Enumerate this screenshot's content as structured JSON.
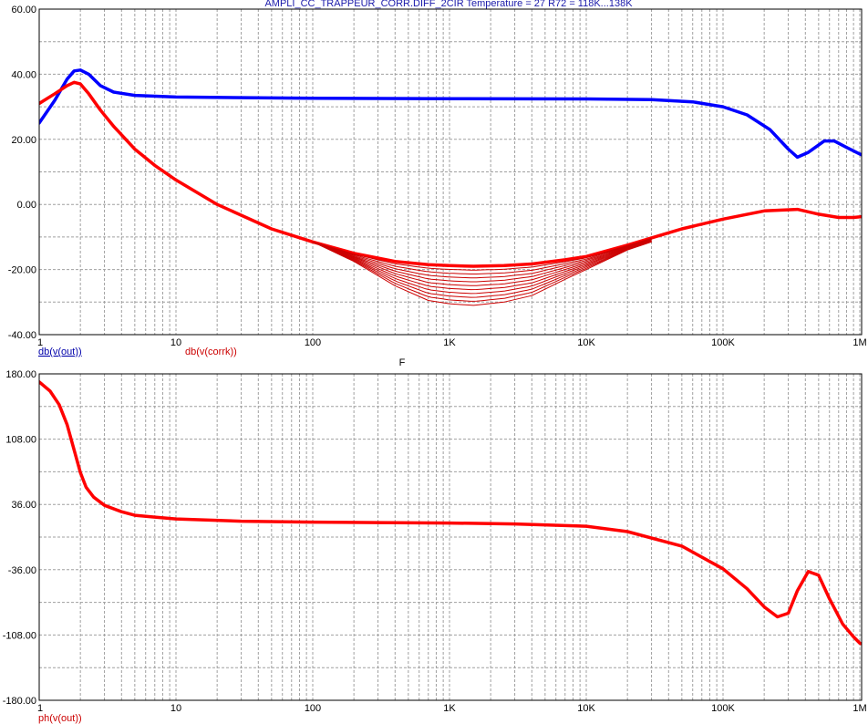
{
  "window": {
    "title": "AMPLI_CC_TRAPPEUR_CORR.DIFF_2CIR  Temperature = 27  R72 = 118K...138K"
  },
  "colors": {
    "blue": "#0000ff",
    "red": "#ff0000",
    "darkred": "#cc0000",
    "grid": "#9a9a9a"
  },
  "chart_data": [
    {
      "type": "line",
      "title": "AMPLI_CC_TRAPPEUR_CORR.DIFF_2CIR  Temperature = 27  R72 = 118K...138K",
      "xlabel": "F",
      "ylabel": "",
      "xscale": "log",
      "xlim": [
        1,
        1200000
      ],
      "ylim": [
        -40,
        60
      ],
      "grid": true,
      "x_tick_labels": [
        "1",
        "10",
        "100",
        "1K",
        "10K",
        "100K",
        "1M"
      ],
      "y_tick_labels": [
        "60.00",
        "40.00",
        "20.00",
        "0.00",
        "-20.00",
        "-40.00"
      ],
      "legend": [
        "db(v(out))",
        "db(v(corrk))"
      ],
      "series": [
        {
          "name": "db(v(out))",
          "color": "#0000ff",
          "x": [
            1,
            1.3,
            1.6,
            1.8,
            2.0,
            2.3,
            2.8,
            3.5,
            5,
            10,
            100,
            1000,
            10000,
            30000,
            60000,
            100000,
            150000,
            220000,
            300000,
            350000,
            420000,
            550000,
            650000,
            800000,
            1000000,
            1200000
          ],
          "y": [
            25,
            32,
            38.5,
            41,
            41.3,
            40,
            36.5,
            34.5,
            33.5,
            33,
            32.6,
            32.5,
            32.4,
            32.2,
            31.5,
            30,
            27.5,
            23,
            17,
            14.5,
            16,
            19.5,
            19.5,
            17.5,
            15.5,
            14
          ]
        },
        {
          "name": "db(v(corrk))",
          "color": "#ff0000",
          "x": [
            1,
            1.3,
            1.6,
            1.8,
            2.0,
            2.3,
            2.8,
            3.5,
            5,
            7,
            10,
            20,
            50,
            100,
            200,
            400,
            700,
            1000,
            1500,
            2500,
            4000,
            7000,
            10000,
            20000,
            50000,
            100000,
            200000,
            350000,
            500000,
            700000,
            900000,
            1200000
          ],
          "y": [
            31,
            34,
            36.5,
            37.5,
            37,
            34,
            29,
            24,
            17,
            12,
            7.5,
            0,
            -7.5,
            -11.5,
            -15,
            -17.5,
            -18.5,
            -18.8,
            -19,
            -18.8,
            -18.3,
            -17,
            -16,
            -12.5,
            -7.5,
            -4.5,
            -2,
            -1.5,
            -3,
            -4,
            -4,
            -3.5
          ]
        },
        {
          "name": "",
          "color": "#cc0000",
          "x": [
            100,
            200,
            400,
            700,
            1000,
            1500,
            2500,
            4000,
            7000,
            10000,
            20000,
            30000
          ],
          "y": [
            -11.5,
            -17.5,
            -25,
            -29.5,
            -30.5,
            -31,
            -30,
            -28,
            -23,
            -20,
            -14,
            -11.5
          ]
        }
      ]
    },
    {
      "type": "line",
      "title": "",
      "xlabel": "",
      "ylabel": "",
      "xscale": "log",
      "xlim": [
        1,
        1200000
      ],
      "ylim": [
        -180,
        180
      ],
      "grid": true,
      "x_tick_labels": [
        "1",
        "10",
        "100",
        "1K",
        "10K",
        "100K",
        "1M"
      ],
      "y_tick_labels": [
        "180.00",
        "108.00",
        "36.00",
        "-36.00",
        "-108.00",
        "-180.00"
      ],
      "legend": [
        "ph(v(out))"
      ],
      "series": [
        {
          "name": "ph(v(out))",
          "color": "#ff0000",
          "x": [
            1,
            1.2,
            1.4,
            1.6,
            1.8,
            2.0,
            2.2,
            2.5,
            3,
            4,
            5,
            7,
            10,
            30,
            100,
            300,
            1000,
            3000,
            10000,
            20000,
            50000,
            100000,
            150000,
            200000,
            250000,
            300000,
            350000,
            420000,
            500000,
            600000,
            750000,
            900000,
            1000000,
            1200000
          ],
          "y": [
            171,
            161,
            146,
            124,
            96,
            71,
            55,
            44,
            35,
            28,
            24,
            22,
            20,
            17.5,
            16.5,
            16,
            15.5,
            14.5,
            12,
            6,
            -10,
            -35,
            -57,
            -77,
            -88,
            -84,
            -59,
            -38,
            -42,
            -68,
            -96,
            -110,
            -117,
            -120
          ]
        }
      ]
    }
  ]
}
